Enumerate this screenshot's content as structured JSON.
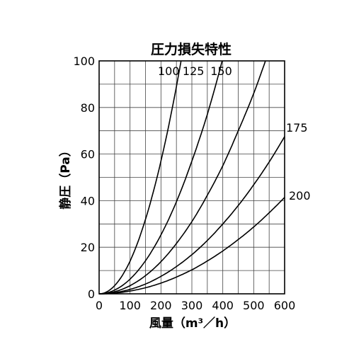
{
  "chart_data": {
    "type": "line",
    "title": "圧力損失特性",
    "xlabel": "風量（m³／h）",
    "ylabel": "静圧（Pa）",
    "xlim": [
      0,
      600
    ],
    "ylim": [
      0,
      100
    ],
    "x_ticks": [
      "0",
      "100",
      "200",
      "300",
      "400",
      "500",
      "600"
    ],
    "y_ticks": [
      "0",
      "20",
      "40",
      "60",
      "80",
      "100"
    ],
    "grid": true,
    "series": [
      {
        "name": "100",
        "x": [
          0,
          50,
          100,
          150,
          200,
          250,
          265
        ],
        "y": [
          0,
          3.5,
          14,
          32,
          57,
          89,
          100
        ]
      },
      {
        "name": "125",
        "x": [
          0,
          50,
          100,
          150,
          200,
          250,
          300,
          350,
          398
        ],
        "y": [
          0,
          1.6,
          6.3,
          14.2,
          25.3,
          39.5,
          57,
          77,
          100
        ]
      },
      {
        "name": "150",
        "x": [
          0,
          50,
          100,
          150,
          200,
          250,
          300,
          350,
          400,
          450,
          500,
          538
        ],
        "y": [
          0,
          0.9,
          3.5,
          7.8,
          13.8,
          21.6,
          31,
          42.3,
          55,
          70,
          86,
          100
        ]
      },
      {
        "name": "175",
        "x": [
          0,
          50,
          100,
          150,
          200,
          250,
          300,
          350,
          400,
          450,
          500,
          550,
          600
        ],
        "y": [
          0,
          0.5,
          1.9,
          4.2,
          7.5,
          11.7,
          16.8,
          22.9,
          30,
          37.9,
          46.8,
          56.6,
          67.5
        ]
      },
      {
        "name": "200",
        "x": [
          0,
          50,
          100,
          150,
          200,
          250,
          300,
          350,
          400,
          450,
          500,
          550,
          600
        ],
        "y": [
          0,
          0.3,
          1.2,
          2.6,
          4.6,
          7.2,
          10.3,
          14.1,
          18.4,
          23.3,
          28.7,
          34.8,
          41.4
        ]
      }
    ]
  }
}
